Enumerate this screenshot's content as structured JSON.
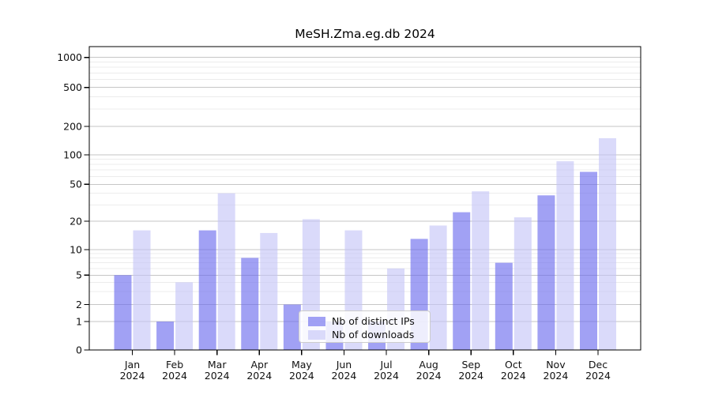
{
  "title": "MeSH.Zma.eg.db 2024",
  "chart_data": {
    "type": "bar",
    "title": "MeSH.Zma.eg.db 2024",
    "xlabel": "",
    "ylabel": "",
    "categories": [
      "Jan 2024",
      "Feb 2024",
      "Mar 2024",
      "Apr 2024",
      "May 2024",
      "Jun 2024",
      "Jul 2024",
      "Aug 2024",
      "Sep 2024",
      "Oct 2024",
      "Nov 2024",
      "Dec 2024"
    ],
    "series": [
      {
        "name": "Nb of distinct IPs",
        "color": "#6868ee",
        "alpha": 0.62,
        "values": [
          5,
          1,
          16,
          8,
          2,
          1,
          1,
          13,
          25,
          7,
          38,
          67
        ]
      },
      {
        "name": "Nb of downloads",
        "color": "#c4c4f7",
        "alpha": 0.62,
        "values": [
          16,
          4,
          40,
          15,
          21,
          16,
          6,
          18,
          42,
          22,
          86,
          150
        ]
      }
    ],
    "yaxis": {
      "scale": "log-like",
      "ylim": [
        0,
        1000
      ],
      "ticks": [
        0,
        1,
        2,
        5,
        10,
        20,
        50,
        100,
        200,
        500,
        1000
      ],
      "minor_gridlines": [
        3,
        4,
        6,
        7,
        8,
        9,
        30,
        40,
        60,
        70,
        80,
        90,
        300,
        400,
        600,
        700,
        800,
        900
      ]
    },
    "grid": "horizontal major+minor",
    "legend": {
      "position": "inside-bottom-center",
      "entries": [
        "Nb of distinct IPs",
        "Nb of downloads"
      ]
    },
    "colors": {
      "major_grid": "#c6c6c6",
      "minor_grid": "#ececec",
      "spine": "#000000",
      "text": "#111111"
    }
  }
}
